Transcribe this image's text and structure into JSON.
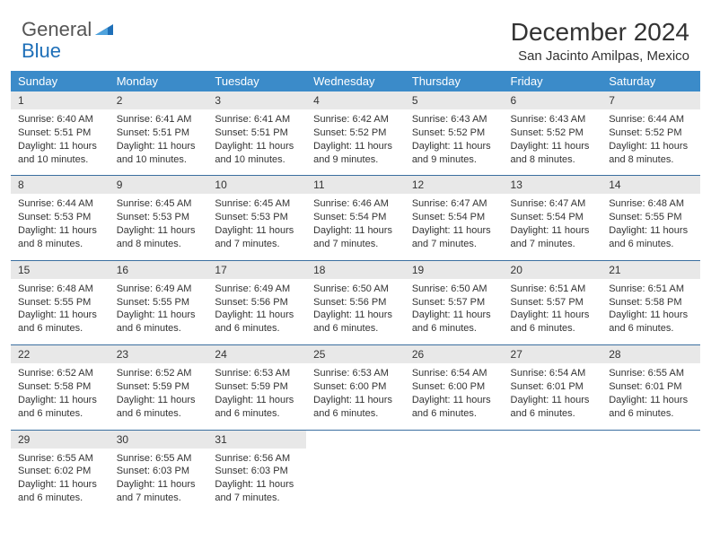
{
  "brand": {
    "word1": "General",
    "word2": "Blue",
    "word1_color": "#555555",
    "word2_color": "#1e6fb8",
    "icon_color": "#1e6fb8"
  },
  "title": "December 2024",
  "location": "San Jacinto Amilpas, Mexico",
  "colors": {
    "header_bg": "#3b8bc9",
    "header_text": "#ffffff",
    "daynum_bg": "#e8e8e8",
    "row_divider": "#3b6fa0",
    "text": "#333333",
    "background": "#ffffff"
  },
  "fonts": {
    "title_size_pt": 21,
    "location_size_pt": 11,
    "dayheader_size_pt": 10,
    "daynum_size_pt": 9,
    "body_size_pt": 8
  },
  "day_headers": [
    "Sunday",
    "Monday",
    "Tuesday",
    "Wednesday",
    "Thursday",
    "Friday",
    "Saturday"
  ],
  "weeks": [
    [
      {
        "n": "1",
        "sunrise": "Sunrise: 6:40 AM",
        "sunset": "Sunset: 5:51 PM",
        "daylight": "Daylight: 11 hours and 10 minutes."
      },
      {
        "n": "2",
        "sunrise": "Sunrise: 6:41 AM",
        "sunset": "Sunset: 5:51 PM",
        "daylight": "Daylight: 11 hours and 10 minutes."
      },
      {
        "n": "3",
        "sunrise": "Sunrise: 6:41 AM",
        "sunset": "Sunset: 5:51 PM",
        "daylight": "Daylight: 11 hours and 10 minutes."
      },
      {
        "n": "4",
        "sunrise": "Sunrise: 6:42 AM",
        "sunset": "Sunset: 5:52 PM",
        "daylight": "Daylight: 11 hours and 9 minutes."
      },
      {
        "n": "5",
        "sunrise": "Sunrise: 6:43 AM",
        "sunset": "Sunset: 5:52 PM",
        "daylight": "Daylight: 11 hours and 9 minutes."
      },
      {
        "n": "6",
        "sunrise": "Sunrise: 6:43 AM",
        "sunset": "Sunset: 5:52 PM",
        "daylight": "Daylight: 11 hours and 8 minutes."
      },
      {
        "n": "7",
        "sunrise": "Sunrise: 6:44 AM",
        "sunset": "Sunset: 5:52 PM",
        "daylight": "Daylight: 11 hours and 8 minutes."
      }
    ],
    [
      {
        "n": "8",
        "sunrise": "Sunrise: 6:44 AM",
        "sunset": "Sunset: 5:53 PM",
        "daylight": "Daylight: 11 hours and 8 minutes."
      },
      {
        "n": "9",
        "sunrise": "Sunrise: 6:45 AM",
        "sunset": "Sunset: 5:53 PM",
        "daylight": "Daylight: 11 hours and 8 minutes."
      },
      {
        "n": "10",
        "sunrise": "Sunrise: 6:45 AM",
        "sunset": "Sunset: 5:53 PM",
        "daylight": "Daylight: 11 hours and 7 minutes."
      },
      {
        "n": "11",
        "sunrise": "Sunrise: 6:46 AM",
        "sunset": "Sunset: 5:54 PM",
        "daylight": "Daylight: 11 hours and 7 minutes."
      },
      {
        "n": "12",
        "sunrise": "Sunrise: 6:47 AM",
        "sunset": "Sunset: 5:54 PM",
        "daylight": "Daylight: 11 hours and 7 minutes."
      },
      {
        "n": "13",
        "sunrise": "Sunrise: 6:47 AM",
        "sunset": "Sunset: 5:54 PM",
        "daylight": "Daylight: 11 hours and 7 minutes."
      },
      {
        "n": "14",
        "sunrise": "Sunrise: 6:48 AM",
        "sunset": "Sunset: 5:55 PM",
        "daylight": "Daylight: 11 hours and 6 minutes."
      }
    ],
    [
      {
        "n": "15",
        "sunrise": "Sunrise: 6:48 AM",
        "sunset": "Sunset: 5:55 PM",
        "daylight": "Daylight: 11 hours and 6 minutes."
      },
      {
        "n": "16",
        "sunrise": "Sunrise: 6:49 AM",
        "sunset": "Sunset: 5:55 PM",
        "daylight": "Daylight: 11 hours and 6 minutes."
      },
      {
        "n": "17",
        "sunrise": "Sunrise: 6:49 AM",
        "sunset": "Sunset: 5:56 PM",
        "daylight": "Daylight: 11 hours and 6 minutes."
      },
      {
        "n": "18",
        "sunrise": "Sunrise: 6:50 AM",
        "sunset": "Sunset: 5:56 PM",
        "daylight": "Daylight: 11 hours and 6 minutes."
      },
      {
        "n": "19",
        "sunrise": "Sunrise: 6:50 AM",
        "sunset": "Sunset: 5:57 PM",
        "daylight": "Daylight: 11 hours and 6 minutes."
      },
      {
        "n": "20",
        "sunrise": "Sunrise: 6:51 AM",
        "sunset": "Sunset: 5:57 PM",
        "daylight": "Daylight: 11 hours and 6 minutes."
      },
      {
        "n": "21",
        "sunrise": "Sunrise: 6:51 AM",
        "sunset": "Sunset: 5:58 PM",
        "daylight": "Daylight: 11 hours and 6 minutes."
      }
    ],
    [
      {
        "n": "22",
        "sunrise": "Sunrise: 6:52 AM",
        "sunset": "Sunset: 5:58 PM",
        "daylight": "Daylight: 11 hours and 6 minutes."
      },
      {
        "n": "23",
        "sunrise": "Sunrise: 6:52 AM",
        "sunset": "Sunset: 5:59 PM",
        "daylight": "Daylight: 11 hours and 6 minutes."
      },
      {
        "n": "24",
        "sunrise": "Sunrise: 6:53 AM",
        "sunset": "Sunset: 5:59 PM",
        "daylight": "Daylight: 11 hours and 6 minutes."
      },
      {
        "n": "25",
        "sunrise": "Sunrise: 6:53 AM",
        "sunset": "Sunset: 6:00 PM",
        "daylight": "Daylight: 11 hours and 6 minutes."
      },
      {
        "n": "26",
        "sunrise": "Sunrise: 6:54 AM",
        "sunset": "Sunset: 6:00 PM",
        "daylight": "Daylight: 11 hours and 6 minutes."
      },
      {
        "n": "27",
        "sunrise": "Sunrise: 6:54 AM",
        "sunset": "Sunset: 6:01 PM",
        "daylight": "Daylight: 11 hours and 6 minutes."
      },
      {
        "n": "28",
        "sunrise": "Sunrise: 6:55 AM",
        "sunset": "Sunset: 6:01 PM",
        "daylight": "Daylight: 11 hours and 6 minutes."
      }
    ],
    [
      {
        "n": "29",
        "sunrise": "Sunrise: 6:55 AM",
        "sunset": "Sunset: 6:02 PM",
        "daylight": "Daylight: 11 hours and 6 minutes."
      },
      {
        "n": "30",
        "sunrise": "Sunrise: 6:55 AM",
        "sunset": "Sunset: 6:03 PM",
        "daylight": "Daylight: 11 hours and 7 minutes."
      },
      {
        "n": "31",
        "sunrise": "Sunrise: 6:56 AM",
        "sunset": "Sunset: 6:03 PM",
        "daylight": "Daylight: 11 hours and 7 minutes."
      },
      {
        "n": "",
        "sunrise": "",
        "sunset": "",
        "daylight": ""
      },
      {
        "n": "",
        "sunrise": "",
        "sunset": "",
        "daylight": ""
      },
      {
        "n": "",
        "sunrise": "",
        "sunset": "",
        "daylight": ""
      },
      {
        "n": "",
        "sunrise": "",
        "sunset": "",
        "daylight": ""
      }
    ]
  ]
}
